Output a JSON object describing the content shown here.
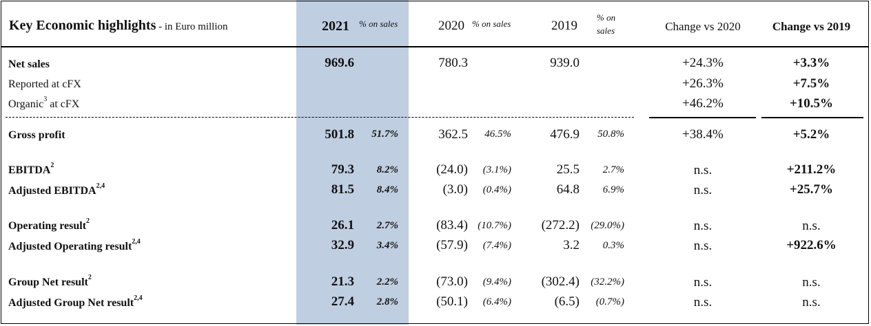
{
  "header": {
    "title": "Key Economic highlights",
    "subtitle": " - in Euro million",
    "col_2021": "2021",
    "col_2020": "2020",
    "col_2019": "2019",
    "pct_on_sales": "% on sales",
    "pct_on": "% on",
    "sales": "sales",
    "change_vs_2020": "Change vs 2020",
    "change_vs_2019": "Change vs 2019"
  },
  "rows": {
    "net_sales": {
      "label": "Net sales",
      "v2021": "969.6",
      "v2020": "780.3",
      "v2019": "939.0",
      "c2020": "+24.3%",
      "c2019": "+3.3%"
    },
    "reported_cfx": {
      "label": "Reported at cFX",
      "c2020": "+26.3%",
      "c2019": "+7.5%"
    },
    "organic_cfx": {
      "label": "Organic",
      "sup": "3",
      "label_tail": " at cFX",
      "c2020": "+46.2%",
      "c2019": "+10.5%"
    },
    "gross_profit": {
      "label": "Gross profit",
      "v2021": "501.8",
      "p2021": "51.7%",
      "v2020": "362.5",
      "p2020": "46.5%",
      "v2019": "476.9",
      "p2019": "50.8%",
      "c2020": "+38.4%",
      "c2019": "+5.2%"
    },
    "ebitda": {
      "label": "EBITDA",
      "sup": "2",
      "v2021": "79.3",
      "p2021": "8.2%",
      "v2020": "(24.0)",
      "p2020": "(3.1%)",
      "v2019": "25.5",
      "p2019": "2.7%",
      "c2020": "n.s.",
      "c2019": "+211.2%"
    },
    "adj_ebitda": {
      "label": "Adjusted EBITDA",
      "sup": "2,4",
      "v2021": "81.5",
      "p2021": "8.4%",
      "v2020": "(3.0)",
      "p2020": "(0.4%)",
      "v2019": "64.8",
      "p2019": "6.9%",
      "c2020": "n.s.",
      "c2019": "+25.7%"
    },
    "op_result": {
      "label": "Operating result",
      "sup": "2",
      "v2021": "26.1",
      "p2021": "2.7%",
      "v2020": "(83.4)",
      "p2020": "(10.7%)",
      "v2019": "(272.2)",
      "p2019": "(29.0%)",
      "c2020": "n.s.",
      "c2019": "n.s."
    },
    "adj_op_result": {
      "label": "Adjusted Operating result",
      "sup": "2,4",
      "v2021": "32.9",
      "p2021": "3.4%",
      "v2020": "(57.9)",
      "p2020": "(7.4%)",
      "v2019": "3.2",
      "p2019": "0.3%",
      "c2020": "n.s.",
      "c2019": "+922.6%"
    },
    "group_net": {
      "label": "Group Net result",
      "sup": "2",
      "v2021": "21.3",
      "p2021": "2.2%",
      "v2020": "(73.0)",
      "p2020": "(9.4%)",
      "v2019": "(302.4)",
      "p2019": "(32.2%)",
      "c2020": "n.s.",
      "c2019": "n.s."
    },
    "adj_group_net": {
      "label": "Adjusted Group Net result",
      "sup": "2,4",
      "v2021": "27.4",
      "p2021": "2.8%",
      "v2020": "(50.1)",
      "p2020": "(6.4%)",
      "v2019": "(6.5)",
      "p2019": "(0.7%)",
      "c2020": "n.s.",
      "c2019": "n.s."
    }
  }
}
